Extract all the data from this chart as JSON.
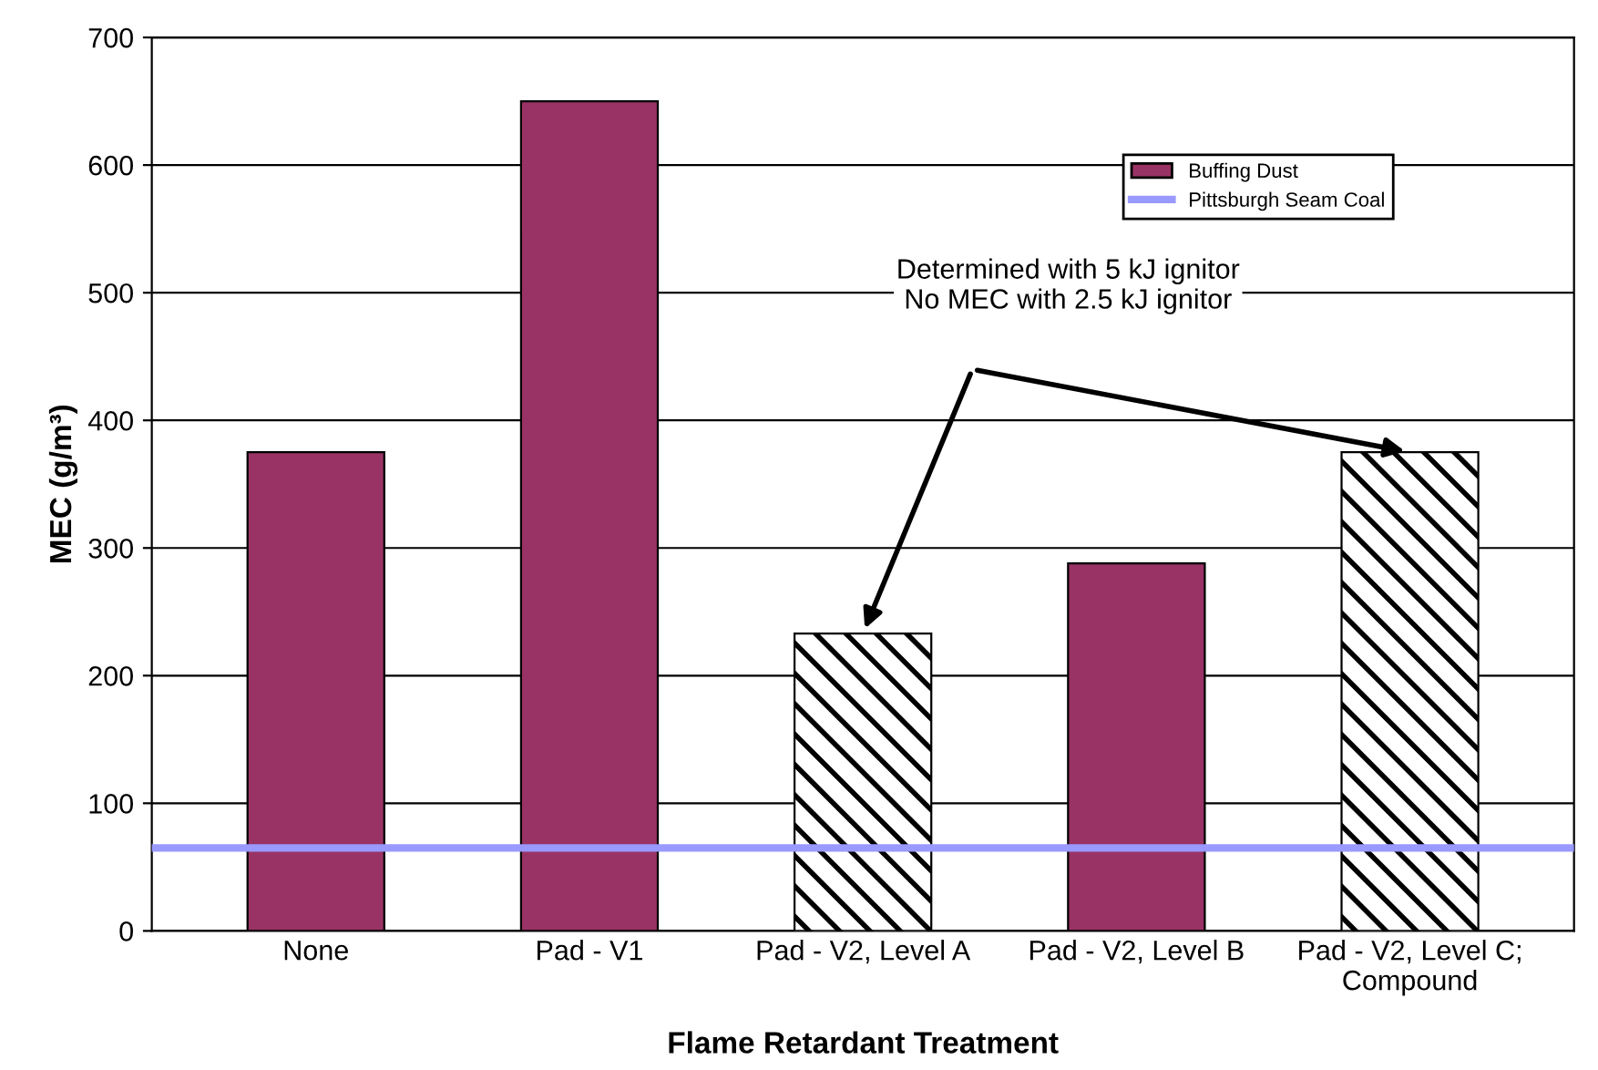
{
  "chart_data": {
    "type": "bar",
    "xlabel": "Flame Retardant Treatment",
    "ylabel": "MEC (g/m³)",
    "categories": [
      "None",
      "Pad - V1",
      "Pad - V2, Level A",
      "Pad - V2, Level B",
      "Pad - V2, Level C;\nCompound"
    ],
    "series": [
      {
        "name": "Buffing Dust",
        "color": "#993366",
        "values": [
          375,
          650,
          null,
          288,
          null
        ]
      },
      {
        "color": "#000000",
        "values": [
          null,
          null,
          233,
          null,
          375
        ]
      }
    ],
    "ref_lines": [
      {
        "axis": "y",
        "value": 65,
        "label": "Pittsburgh Seam Coal",
        "color": "#9999ff"
      }
    ],
    "annotations": [
      "Determined with 5 kJ ignitor\nNo MEC with 2.5 kJ ignitor"
    ],
    "ylim": [
      0,
      700
    ],
    "yticks": [
      0,
      100,
      200,
      300,
      400,
      500,
      600,
      700
    ],
    "grid": "y",
    "legend": "top right"
  }
}
